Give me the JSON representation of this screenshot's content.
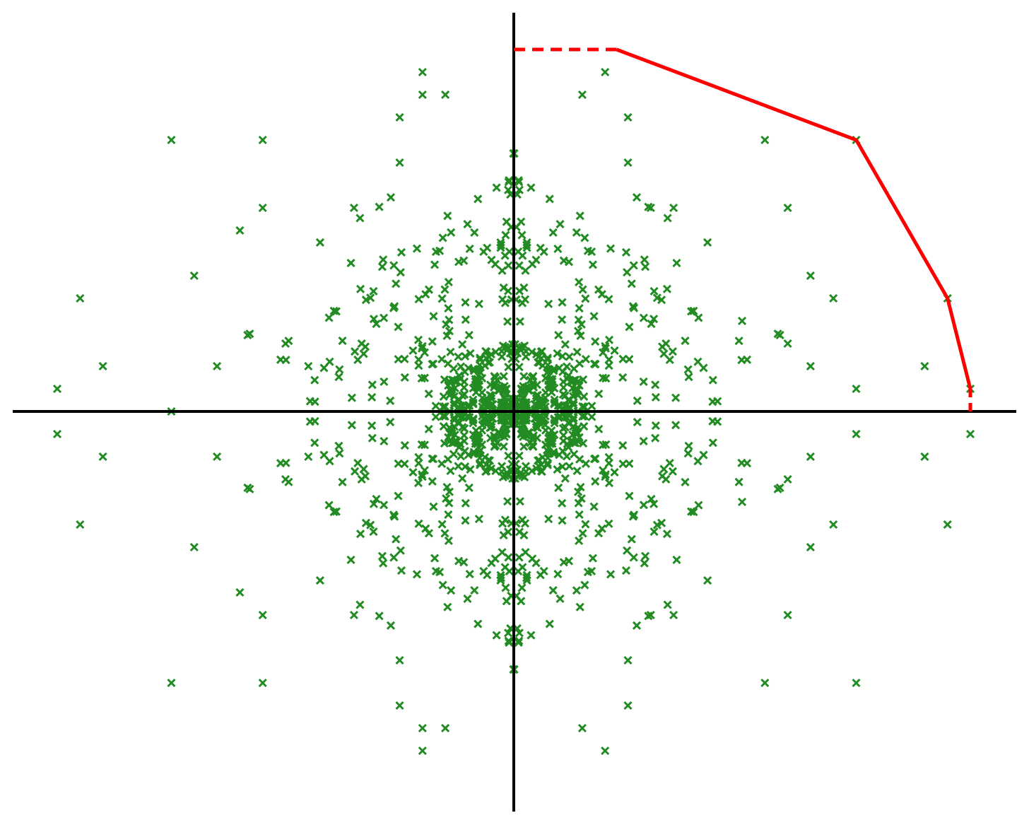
{
  "colors": {
    "background": "#ffffff",
    "axes": "#000000",
    "points": "#228b22",
    "hull": "#ff0000"
  },
  "chart_data": {
    "type": "scatter",
    "title": "",
    "xlabel": "",
    "ylabel": "",
    "grid": false,
    "legend": "none",
    "marker": "x",
    "xlim": [
      -22,
      22
    ],
    "ylim": [
      -17.5,
      17.5
    ],
    "axes_through_origin": true,
    "outlier_points": [
      [
        -20,
        1
      ],
      [
        -20,
        -1
      ],
      [
        -19,
        5
      ],
      [
        -19,
        -5
      ],
      [
        -18,
        2
      ],
      [
        -18,
        -2
      ],
      [
        -15,
        12
      ],
      [
        -15,
        -12
      ],
      [
        -15,
        0
      ],
      [
        -14,
        6
      ],
      [
        -14,
        -6
      ],
      [
        -13,
        2
      ],
      [
        -13,
        -2
      ],
      [
        -12,
        8
      ],
      [
        -12,
        -8
      ],
      [
        -11,
        9
      ],
      [
        -11,
        -9
      ],
      [
        -10,
        3
      ],
      [
        -10,
        -3
      ],
      [
        -11,
        12
      ],
      [
        -11,
        -12
      ],
      [
        -9,
        2
      ],
      [
        -9,
        -2
      ],
      [
        -4,
        15
      ],
      [
        -4,
        -15
      ],
      [
        -4,
        14
      ],
      [
        -4,
        -14
      ],
      [
        -3,
        14
      ],
      [
        -3,
        -14
      ],
      [
        -5,
        13
      ],
      [
        -5,
        -13
      ],
      [
        -5,
        11
      ],
      [
        -5,
        -11
      ],
      [
        -7,
        9
      ],
      [
        -7,
        -9
      ],
      [
        4,
        15
      ],
      [
        4,
        -15
      ],
      [
        3,
        14
      ],
      [
        3,
        -14
      ],
      [
        5,
        13
      ],
      [
        5,
        -13
      ],
      [
        5,
        11
      ],
      [
        5,
        -11
      ],
      [
        6,
        9
      ],
      [
        6,
        -9
      ],
      [
        7,
        9
      ],
      [
        7,
        -9
      ],
      [
        11,
        12
      ],
      [
        11,
        -12
      ],
      [
        12,
        9
      ],
      [
        12,
        -9
      ],
      [
        13,
        6
      ],
      [
        13,
        -6
      ],
      [
        14,
        5
      ],
      [
        14,
        -5
      ],
      [
        15,
        1
      ],
      [
        15,
        -1
      ],
      [
        15,
        12
      ],
      [
        15,
        -12
      ],
      [
        18,
        2
      ],
      [
        18,
        -2
      ],
      [
        19,
        5
      ],
      [
        19,
        -5
      ],
      [
        20,
        1
      ],
      [
        20,
        -1
      ],
      [
        12,
        3
      ],
      [
        12,
        -3
      ],
      [
        13,
        2
      ],
      [
        13,
        -2
      ],
      [
        10,
        4
      ],
      [
        10,
        -4
      ]
    ],
    "hull": {
      "solid": [
        [
          4.5,
          16
        ],
        [
          15,
          12
        ],
        [
          19,
          5
        ],
        [
          20,
          1
        ],
        [
          20,
          0
        ]
      ],
      "dashed": [
        [
          0,
          16
        ],
        [
          4.5,
          16
        ]
      ],
      "dashed_tail": [
        [
          20,
          1
        ],
        [
          20,
          0
        ]
      ]
    }
  }
}
